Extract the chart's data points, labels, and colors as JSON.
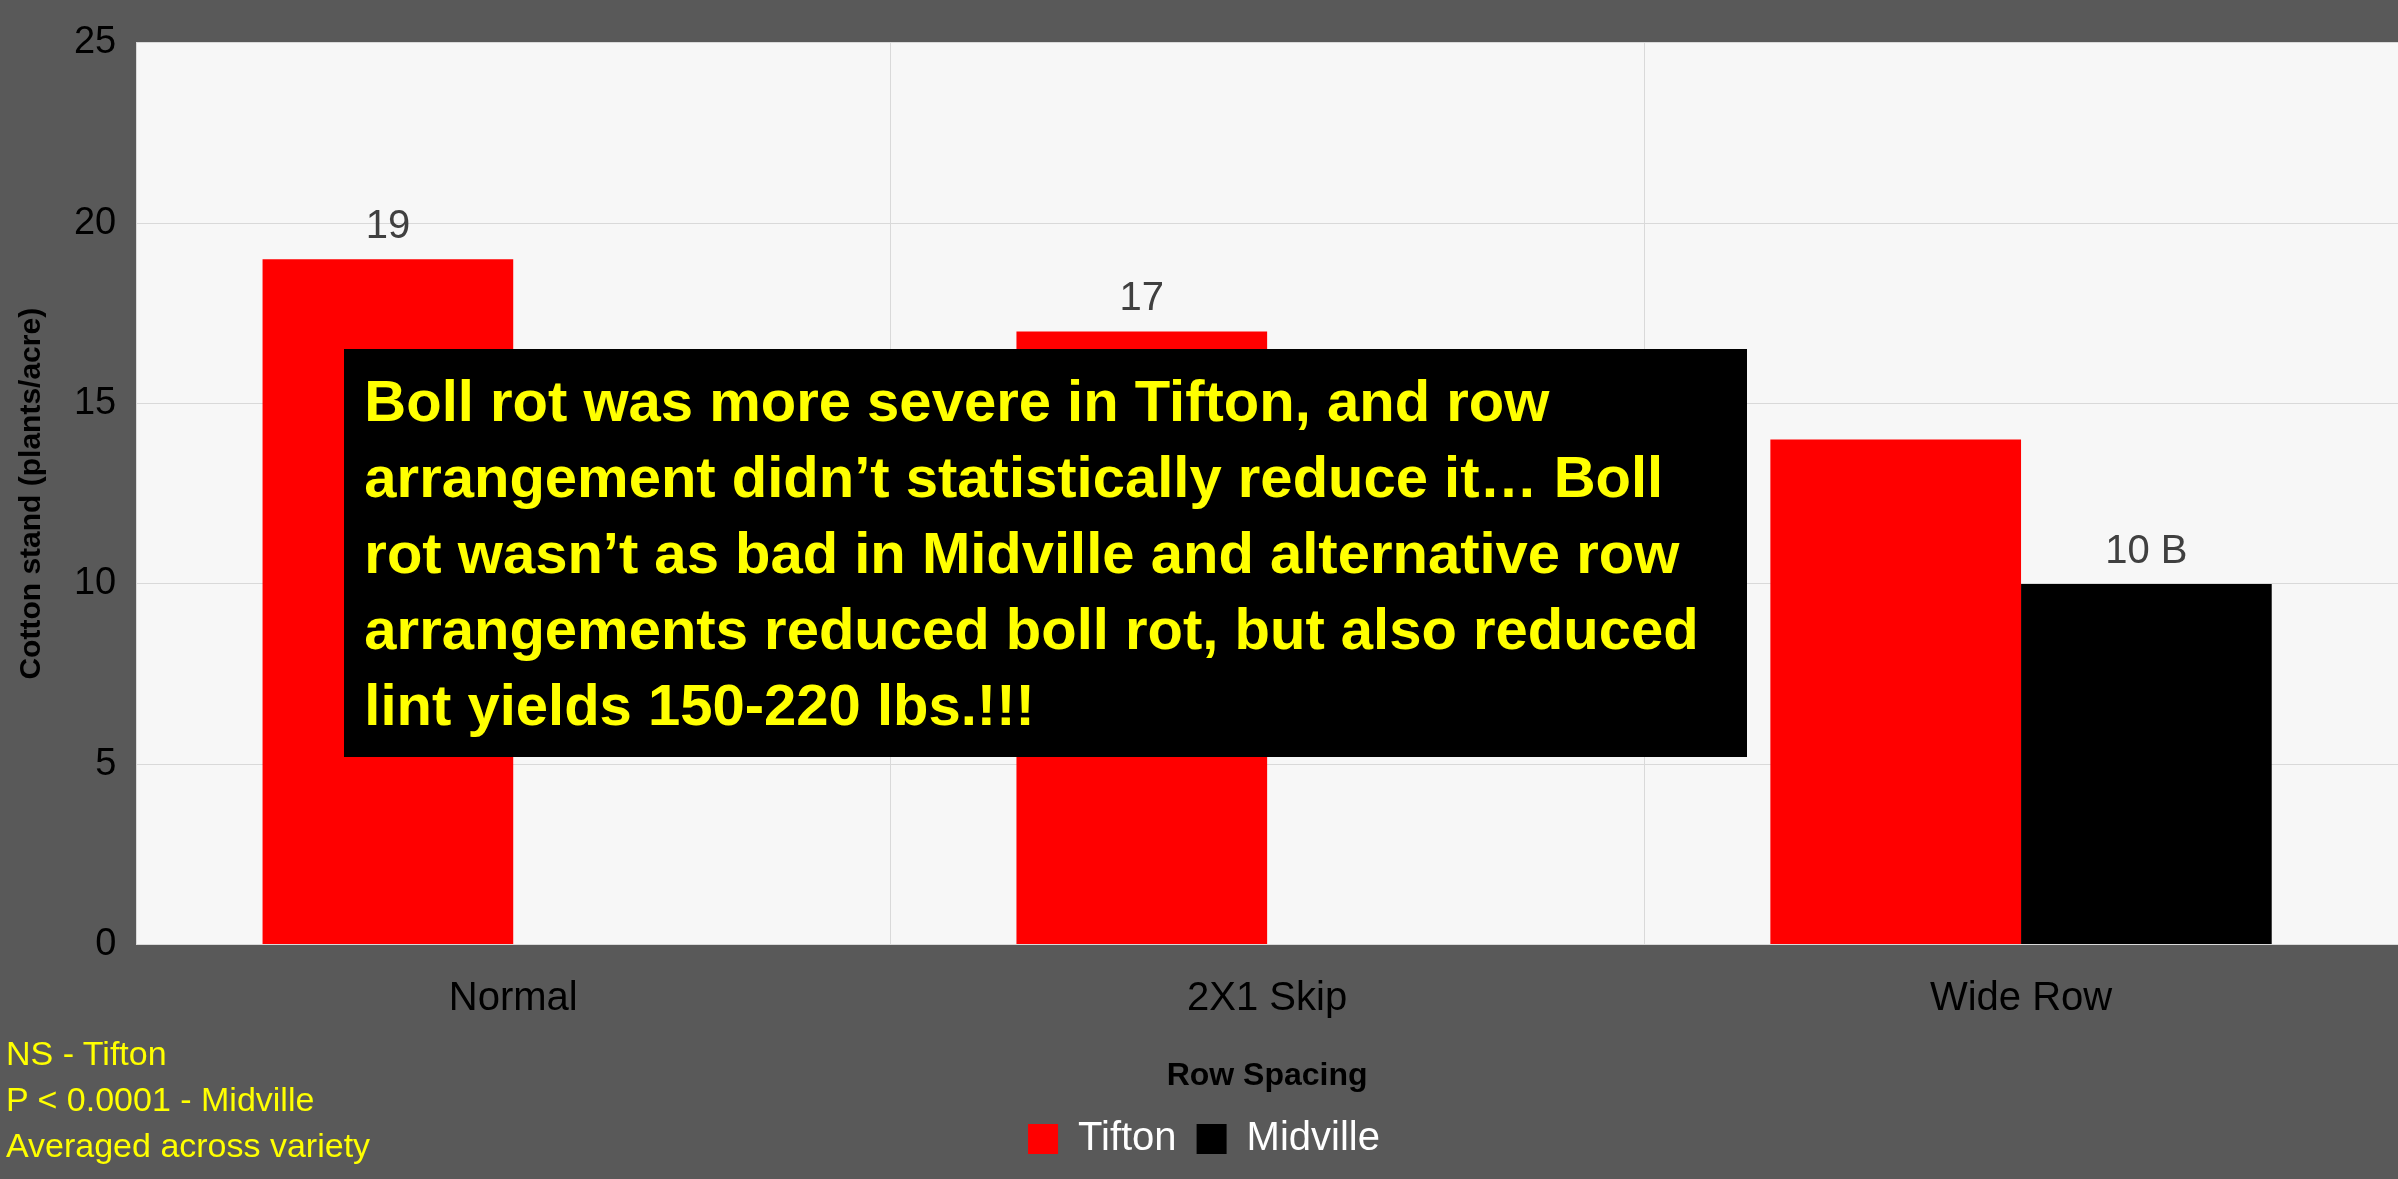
{
  "chart_data": {
    "type": "bar",
    "xlabel": "Row Spacing",
    "ylabel": "Cotton stand (plants/acre)",
    "categories": [
      "Normal",
      "2X1 Skip",
      "Wide Row"
    ],
    "series": [
      {
        "name": "Tifton",
        "color": "#ff0000",
        "values": [
          19,
          17,
          14
        ],
        "value_labels": [
          "19",
          "17",
          null
        ]
      },
      {
        "name": "Midville",
        "color": "#000000",
        "values": [
          null,
          null,
          10
        ],
        "value_labels": [
          null,
          null,
          "10 B"
        ]
      }
    ],
    "ylim": [
      0,
      25
    ],
    "yticks": [
      0,
      5,
      10,
      15,
      20,
      25
    ],
    "grid": true,
    "legend": "bottom",
    "annotations": [
      "Boll rot was more severe in Tifton, and row arrangement didn’t statistically reduce it… Boll rot wasn’t as bad in Midville and alternative row arrangements reduced boll rot, but also reduced lint yields 150-220 lbs.!!!",
      "NS - Tifton",
      "P < 0.0001 - Midville",
      "Averaged across variety"
    ]
  }
}
